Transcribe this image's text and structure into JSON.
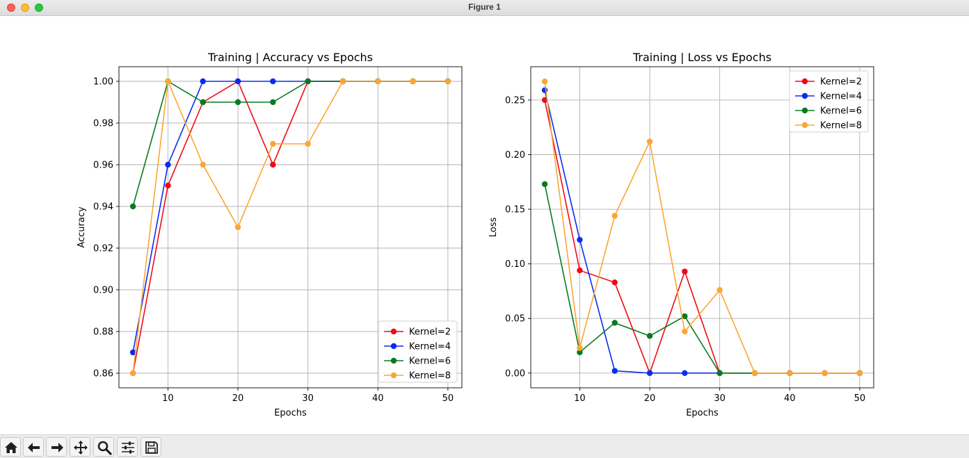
{
  "window": {
    "title": "Figure 1"
  },
  "toolbar": {
    "icons": [
      "home-icon",
      "back-arrow-icon",
      "forward-arrow-icon",
      "pan-move-icon",
      "zoom-magnifier-icon",
      "configure-subplots-icon",
      "save-floppy-icon"
    ]
  },
  "colors": {
    "Kernel=2": "#f00a16",
    "Kernel=4": "#0a2cf0",
    "Kernel=6": "#087a20",
    "Kernel=8": "#fca632"
  },
  "chart_data": [
    {
      "type": "line",
      "title": "Training | Accuracy vs Epochs",
      "xlabel": "Epochs",
      "ylabel": "Accuracy",
      "x": [
        5,
        10,
        15,
        20,
        25,
        30,
        35,
        40,
        45,
        50
      ],
      "xlim": [
        3,
        52
      ],
      "ylim": [
        0.853,
        1.007
      ],
      "xticks": [
        10,
        20,
        30,
        40,
        50
      ],
      "xtick_labels": [
        "10",
        "20",
        "30",
        "40",
        "50"
      ],
      "yticks": [
        0.86,
        0.88,
        0.9,
        0.92,
        0.94,
        0.96,
        0.98,
        1.0
      ],
      "ytick_labels": [
        "0.86",
        "0.88",
        "0.90",
        "0.92",
        "0.94",
        "0.96",
        "0.98",
        "1.00"
      ],
      "grid": true,
      "legend": "lower-right",
      "series": [
        {
          "name": "Kernel=2",
          "values": [
            0.86,
            0.95,
            0.99,
            1.0,
            0.96,
            1.0,
            1.0,
            1.0,
            1.0,
            1.0
          ]
        },
        {
          "name": "Kernel=4",
          "values": [
            0.87,
            0.96,
            1.0,
            1.0,
            1.0,
            1.0,
            1.0,
            1.0,
            1.0,
            1.0
          ]
        },
        {
          "name": "Kernel=6",
          "values": [
            0.94,
            1.0,
            0.99,
            0.99,
            0.99,
            1.0,
            1.0,
            1.0,
            1.0,
            1.0
          ]
        },
        {
          "name": "Kernel=8",
          "values": [
            0.86,
            1.0,
            0.96,
            0.93,
            0.97,
            0.97,
            1.0,
            1.0,
            1.0,
            1.0
          ]
        }
      ]
    },
    {
      "type": "line",
      "title": "Training | Loss vs Epochs",
      "xlabel": "Epochs",
      "ylabel": "Loss",
      "x": [
        5,
        10,
        15,
        20,
        25,
        30,
        35,
        40,
        45,
        50
      ],
      "xlim": [
        3,
        52
      ],
      "ylim": [
        -0.0135,
        0.2805
      ],
      "xticks": [
        10,
        20,
        30,
        40,
        50
      ],
      "xtick_labels": [
        "10",
        "20",
        "30",
        "40",
        "50"
      ],
      "yticks": [
        0.0,
        0.05,
        0.1,
        0.15,
        0.2,
        0.25
      ],
      "ytick_labels": [
        "0.00",
        "0.05",
        "0.10",
        "0.15",
        "0.20",
        "0.25"
      ],
      "grid": true,
      "legend": "upper-right",
      "series": [
        {
          "name": "Kernel=2",
          "values": [
            0.25,
            0.094,
            0.083,
            0.0,
            0.093,
            0.0,
            0.0,
            0.0,
            0.0,
            0.0
          ]
        },
        {
          "name": "Kernel=4",
          "values": [
            0.259,
            0.122,
            0.002,
            0.0,
            0.0,
            0.0,
            0.0,
            0.0,
            0.0,
            0.0
          ]
        },
        {
          "name": "Kernel=6",
          "values": [
            0.173,
            0.019,
            0.046,
            0.034,
            0.052,
            0.0,
            0.0,
            0.0,
            0.0,
            0.0
          ]
        },
        {
          "name": "Kernel=8",
          "values": [
            0.267,
            0.023,
            0.144,
            0.212,
            0.038,
            0.076,
            0.0,
            0.0,
            0.0,
            0.0
          ]
        }
      ]
    }
  ]
}
